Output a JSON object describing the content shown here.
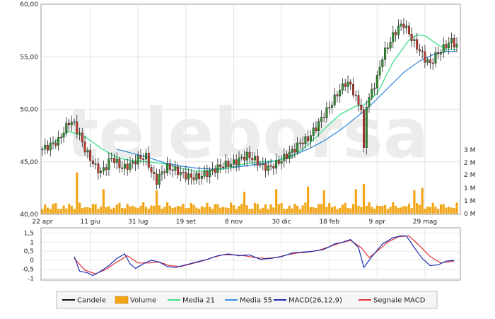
{
  "chart_data": {
    "type": "candlestick",
    "watermark": "teleborsa",
    "price_panel": {
      "yticks": [
        "60,00",
        "55,00",
        "50,00",
        "45,00",
        "40,00"
      ],
      "ylim": [
        40,
        60
      ],
      "grid": true
    },
    "volume_panel": {
      "ticks": [
        "3 M",
        "2 M",
        "2 M",
        "1 M",
        "1 M",
        "0 M"
      ]
    },
    "macd_panel": {
      "yticks": [
        "1,5",
        "1",
        "0,5",
        "0",
        "-0,5",
        "-1"
      ],
      "ylim": [
        -1.1,
        1.8
      ]
    },
    "xticks": [
      "22 apr",
      "11 giu",
      "31 lug",
      "19 set",
      "8 nov",
      "30 dic",
      "18 feb",
      "9 apr",
      "29 mag"
    ],
    "price_anchors": [
      [
        0,
        46.2
      ],
      [
        3,
        46.6
      ],
      [
        6,
        47.0
      ],
      [
        8,
        47.9
      ],
      [
        10,
        48.8
      ],
      [
        12,
        48.6
      ],
      [
        14,
        47.5
      ],
      [
        16,
        46.2
      ],
      [
        18,
        45.3
      ],
      [
        20,
        44.5
      ],
      [
        22,
        44.0
      ],
      [
        24,
        44.6
      ],
      [
        26,
        45.4
      ],
      [
        28,
        44.9
      ],
      [
        30,
        44.4
      ],
      [
        33,
        44.7
      ],
      [
        36,
        45.3
      ],
      [
        39,
        45.5
      ],
      [
        41,
        44.0
      ],
      [
        43,
        43.2
      ],
      [
        45,
        44.0
      ],
      [
        47,
        44.5
      ],
      [
        50,
        44.2
      ],
      [
        53,
        43.8
      ],
      [
        56,
        43.5
      ],
      [
        59,
        43.6
      ],
      [
        62,
        43.9
      ],
      [
        65,
        44.3
      ],
      [
        68,
        44.7
      ],
      [
        71,
        44.8
      ],
      [
        74,
        45.2
      ],
      [
        77,
        45.6
      ],
      [
        80,
        45.2
      ],
      [
        82,
        44.7
      ],
      [
        85,
        44.4
      ],
      [
        88,
        44.8
      ],
      [
        91,
        45.4
      ],
      [
        94,
        46.0
      ],
      [
        97,
        46.8
      ],
      [
        100,
        47.2
      ],
      [
        103,
        48.3
      ],
      [
        106,
        49.5
      ],
      [
        109,
        50.6
      ],
      [
        111,
        51.5
      ],
      [
        114,
        52.5
      ],
      [
        116,
        52.3
      ],
      [
        118,
        51.0
      ],
      [
        120,
        50.1
      ],
      [
        121,
        46.0
      ],
      [
        122,
        50.5
      ],
      [
        124,
        51.7
      ],
      [
        126,
        53.0
      ],
      [
        128,
        55.0
      ],
      [
        130,
        56.0
      ],
      [
        132,
        57.0
      ],
      [
        134,
        57.8
      ],
      [
        136,
        58.1
      ],
      [
        138,
        57.2
      ],
      [
        140,
        56.3
      ],
      [
        142,
        55.6
      ],
      [
        144,
        54.8
      ],
      [
        146,
        54.3
      ],
      [
        148,
        55.1
      ],
      [
        150,
        55.6
      ],
      [
        152,
        56.1
      ],
      [
        154,
        56.5
      ],
      [
        156,
        56.0
      ]
    ],
    "ma21_anchors": [
      [
        4,
        46.8
      ],
      [
        10,
        47.9
      ],
      [
        16,
        47.4
      ],
      [
        22,
        46.3
      ],
      [
        28,
        45.4
      ],
      [
        34,
        45.1
      ],
      [
        40,
        45.0
      ],
      [
        46,
        44.8
      ],
      [
        52,
        44.4
      ],
      [
        58,
        44.1
      ],
      [
        64,
        44.2
      ],
      [
        70,
        44.4
      ],
      [
        76,
        44.8
      ],
      [
        82,
        45.0
      ],
      [
        88,
        45.1
      ],
      [
        94,
        45.5
      ],
      [
        100,
        46.6
      ],
      [
        106,
        48.1
      ],
      [
        112,
        49.5
      ],
      [
        118,
        50.3
      ],
      [
        121,
        50.4
      ],
      [
        126,
        51.5
      ],
      [
        132,
        54.5
      ],
      [
        138,
        56.6
      ],
      [
        141,
        57.1
      ],
      [
        144,
        57.0
      ],
      [
        148,
        56.3
      ],
      [
        152,
        55.7
      ],
      [
        156,
        55.7
      ]
    ],
    "ma55_anchors": [
      [
        28,
        46.2
      ],
      [
        34,
        45.8
      ],
      [
        40,
        45.4
      ],
      [
        46,
        44.9
      ],
      [
        52,
        44.6
      ],
      [
        58,
        44.4
      ],
      [
        64,
        44.3
      ],
      [
        70,
        44.4
      ],
      [
        76,
        44.6
      ],
      [
        82,
        44.8
      ],
      [
        88,
        45.1
      ],
      [
        94,
        45.6
      ],
      [
        100,
        46.2
      ],
      [
        106,
        47.0
      ],
      [
        112,
        48.0
      ],
      [
        118,
        49.2
      ],
      [
        124,
        50.5
      ],
      [
        130,
        52.0
      ],
      [
        136,
        53.5
      ],
      [
        142,
        54.6
      ],
      [
        148,
        55.3
      ],
      [
        152,
        55.5
      ],
      [
        156,
        55.5
      ]
    ],
    "volume_tall_bars": [
      [
        13,
        3.2
      ],
      [
        23,
        1.9
      ],
      [
        43,
        1.8
      ],
      [
        76,
        1.7
      ],
      [
        88,
        1.9
      ],
      [
        100,
        2.1
      ],
      [
        106,
        1.8
      ],
      [
        118,
        1.9
      ],
      [
        121,
        2.3
      ],
      [
        140,
        1.8
      ],
      [
        143,
        2.0
      ]
    ],
    "macd_anchors": [
      [
        12,
        0.2
      ],
      [
        14,
        -0.6
      ],
      [
        17,
        -0.7
      ],
      [
        19,
        -0.85
      ],
      [
        22,
        -0.6
      ],
      [
        25,
        -0.3
      ],
      [
        28,
        0.1
      ],
      [
        31,
        0.35
      ],
      [
        33,
        -0.2
      ],
      [
        35,
        -0.45
      ],
      [
        38,
        -0.2
      ],
      [
        41,
        0.0
      ],
      [
        44,
        -0.1
      ],
      [
        47,
        -0.35
      ],
      [
        50,
        -0.4
      ],
      [
        54,
        -0.25
      ],
      [
        58,
        -0.1
      ],
      [
        62,
        0.05
      ],
      [
        66,
        0.25
      ],
      [
        70,
        0.35
      ],
      [
        74,
        0.25
      ],
      [
        78,
        0.3
      ],
      [
        82,
        0.05
      ],
      [
        86,
        0.1
      ],
      [
        90,
        0.2
      ],
      [
        94,
        0.4
      ],
      [
        98,
        0.45
      ],
      [
        102,
        0.5
      ],
      [
        106,
        0.6
      ],
      [
        110,
        0.9
      ],
      [
        113,
        1.0
      ],
      [
        116,
        1.15
      ],
      [
        119,
        0.7
      ],
      [
        121,
        -0.4
      ],
      [
        124,
        0.2
      ],
      [
        128,
        0.9
      ],
      [
        132,
        1.25
      ],
      [
        135,
        1.35
      ],
      [
        137,
        1.35
      ],
      [
        140,
        0.7
      ],
      [
        143,
        0.1
      ],
      [
        146,
        -0.3
      ],
      [
        149,
        -0.25
      ],
      [
        152,
        -0.05
      ],
      [
        155,
        0.0
      ]
    ],
    "signal_anchors": [
      [
        12,
        0.1
      ],
      [
        16,
        -0.55
      ],
      [
        20,
        -0.75
      ],
      [
        24,
        -0.5
      ],
      [
        28,
        -0.1
      ],
      [
        32,
        0.25
      ],
      [
        36,
        -0.15
      ],
      [
        40,
        -0.15
      ],
      [
        44,
        -0.1
      ],
      [
        48,
        -0.3
      ],
      [
        52,
        -0.35
      ],
      [
        56,
        -0.2
      ],
      [
        60,
        -0.05
      ],
      [
        64,
        0.15
      ],
      [
        68,
        0.3
      ],
      [
        72,
        0.3
      ],
      [
        76,
        0.25
      ],
      [
        80,
        0.15
      ],
      [
        84,
        0.1
      ],
      [
        88,
        0.15
      ],
      [
        92,
        0.3
      ],
      [
        96,
        0.4
      ],
      [
        100,
        0.45
      ],
      [
        104,
        0.55
      ],
      [
        108,
        0.75
      ],
      [
        112,
        0.95
      ],
      [
        116,
        1.1
      ],
      [
        120,
        0.7
      ],
      [
        123,
        0.15
      ],
      [
        126,
        0.5
      ],
      [
        130,
        1.0
      ],
      [
        134,
        1.3
      ],
      [
        138,
        1.35
      ],
      [
        142,
        0.8
      ],
      [
        146,
        0.2
      ],
      [
        150,
        -0.15
      ],
      [
        155,
        -0.05
      ]
    ],
    "legend": [
      {
        "label": "Candele",
        "kind": "line",
        "color": "#111111"
      },
      {
        "label": "Volume",
        "kind": "box",
        "color": "#f2a516"
      },
      {
        "label": "Media 21",
        "kind": "line",
        "color": "#3de08a"
      },
      {
        "label": "Media 55",
        "kind": "line",
        "color": "#3b8fdd"
      },
      {
        "label": "MACD(26,12,9)",
        "kind": "line",
        "color": "#1a2db0"
      },
      {
        "label": "Segnale MACD",
        "kind": "line",
        "color": "#e0333a"
      }
    ]
  }
}
